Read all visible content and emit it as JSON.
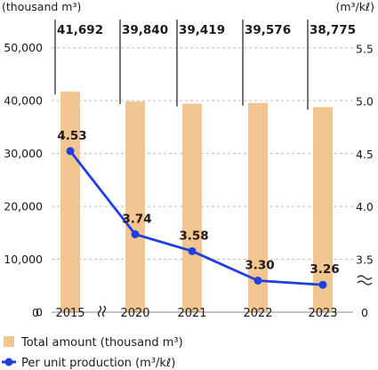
{
  "chart_data": {
    "type": "bar",
    "categories": [
      "2015",
      "2020",
      "2021",
      "2022",
      "2023"
    ],
    "series": [
      {
        "name": "Total amount (thousand m³)",
        "type": "bar",
        "axis": "left",
        "color": "#f2c690",
        "values": [
          41692,
          39840,
          39419,
          39576,
          38775
        ],
        "labels": [
          "41,692",
          "39,840",
          "39,419",
          "39,576",
          "38,775"
        ]
      },
      {
        "name": "Per unit production (m³/kℓ)",
        "type": "line",
        "axis": "right",
        "color": "#1f3fe0",
        "values": [
          4.53,
          3.74,
          3.58,
          3.3,
          3.26
        ],
        "labels": [
          "4.53",
          "3.74",
          "3.58",
          "3.30",
          "3.26"
        ]
      }
    ],
    "left_axis": {
      "label": "(thousand m³)",
      "ticks": [
        0,
        10000,
        20000,
        30000,
        40000,
        50000
      ],
      "tick_labels": [
        "0",
        "10,000",
        "20,000",
        "30,000",
        "40,000",
        "50,000"
      ],
      "range": [
        0,
        55000
      ]
    },
    "right_axis": {
      "label": "(m³/kℓ)",
      "ticks": [
        3.5,
        4.0,
        4.5,
        5.0,
        5.5
      ],
      "tick_labels": [
        "3.5",
        "4.0",
        "4.5",
        "5.0",
        "5.5"
      ],
      "zero_label": "0",
      "range": [
        3.0,
        5.5
      ],
      "broken": true
    },
    "x_axis_break_after": "2015",
    "grid": true,
    "legend_position": "bottom-left"
  },
  "legend": {
    "bar_label": "Total amount (thousand m³)",
    "line_label": "Per unit production (m³/kℓ)"
  }
}
